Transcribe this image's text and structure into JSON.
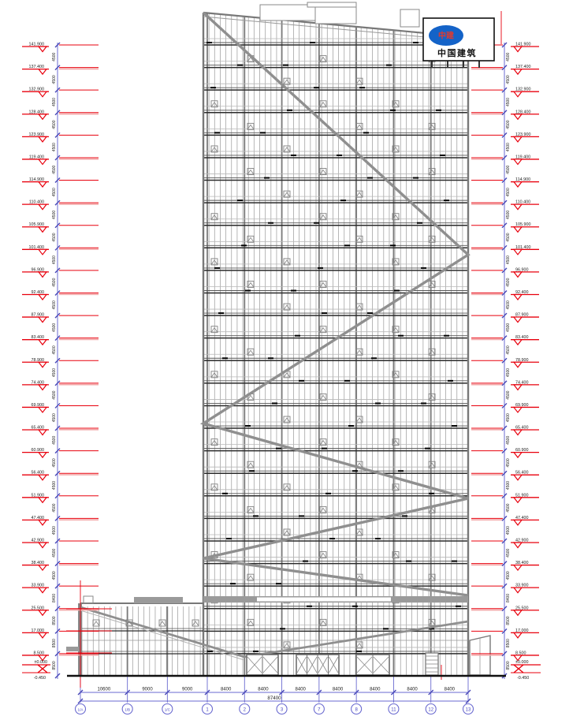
{
  "levels": [
    {
      "value": "141.900",
      "dim": "4500"
    },
    {
      "value": "137.400",
      "dim": "4500"
    },
    {
      "value": "132.900",
      "dim": "4500"
    },
    {
      "value": "128.400",
      "dim": "4500"
    },
    {
      "value": "123.900",
      "dim": "4500"
    },
    {
      "value": "119.400",
      "dim": "4500"
    },
    {
      "value": "114.900",
      "dim": "4500"
    },
    {
      "value": "110.400",
      "dim": "4500"
    },
    {
      "value": "105.900",
      "dim": "4500"
    },
    {
      "value": "101.400",
      "dim": "4500"
    },
    {
      "value": "96.900",
      "dim": "4500"
    },
    {
      "value": "92.400",
      "dim": "4500"
    },
    {
      "value": "87.900",
      "dim": "4500"
    },
    {
      "value": "83.400",
      "dim": "4500"
    },
    {
      "value": "78.900",
      "dim": "4500"
    },
    {
      "value": "74.400",
      "dim": "4500"
    },
    {
      "value": "69.900",
      "dim": "4500"
    },
    {
      "value": "65.400",
      "dim": "4500"
    },
    {
      "value": "60.900",
      "dim": "4500"
    },
    {
      "value": "56.400",
      "dim": "4500"
    },
    {
      "value": "51.900",
      "dim": "4500"
    },
    {
      "value": "47.400",
      "dim": "4500"
    },
    {
      "value": "42.900",
      "dim": "4500"
    },
    {
      "value": "38.400",
      "dim": "4500"
    },
    {
      "value": "33.900",
      "dim": "8400"
    },
    {
      "value": "25.500",
      "dim": "8500"
    },
    {
      "value": "17.000",
      "dim": "8500"
    },
    {
      "value": "8.500",
      "dim": "8500"
    }
  ],
  "ground": {
    "upper": "±0.000",
    "lower": "-0.450"
  },
  "axes": {
    "dims": [
      "10600",
      "9000",
      "9000",
      "8400",
      "8400",
      "8400",
      "8400",
      "8400",
      "8400",
      "8400"
    ],
    "total": "87400",
    "bubbles": [
      "1/A",
      "1/B",
      "1/C",
      "1",
      "2",
      "3",
      "7",
      "8",
      "11",
      "12",
      "13"
    ]
  },
  "logo": {
    "emblem": "中建",
    "caption": "中国建筑"
  },
  "colors": {
    "marker_red": "#e8000d",
    "leader_pink": "#f2a6a6",
    "dim_blue": "#6a6ad0",
    "facade_gray": "#9a9a9a",
    "line_dark": "#222222",
    "logo_blue": "#1463c8",
    "logo_red": "#e23a2e"
  }
}
